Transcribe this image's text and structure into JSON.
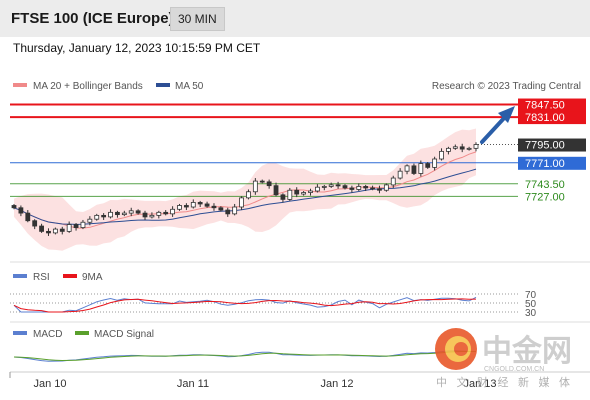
{
  "header": {
    "title": "FTSE 100 (ICE Europe)",
    "interval": "30 MIN"
  },
  "datetime": "Thursday, January 12, 2023 10:15:59 PM CET",
  "legend": {
    "ma_bb": "MA 20 + Bollinger Bands",
    "ma50": "MA 50",
    "credit": "Research © 2023 Trading Central"
  },
  "colors": {
    "resistance": "#e8141b",
    "current": "#333333",
    "pivot": "#2f6bd6",
    "support": "#2e8b1e",
    "arrow": "#2a5ea8",
    "ma20": "#f08a8a",
    "ma50": "#2d4e94",
    "bands": "#fbdcdc"
  },
  "levels": [
    {
      "label": "7847.50",
      "kind": "resistance"
    },
    {
      "label": "7831.00",
      "kind": "resistance"
    },
    {
      "label": "7795.00",
      "kind": "current"
    },
    {
      "label": "7771.00",
      "kind": "pivot"
    },
    {
      "label": "7743.50",
      "kind": "support"
    },
    {
      "label": "7727.00",
      "kind": "support"
    }
  ],
  "rsi": {
    "label": "RSI",
    "ma_label": "9MA",
    "ticks": [
      "70",
      "50",
      "30"
    ]
  },
  "macd": {
    "label": "MACD",
    "signal_label": "MACD Signal"
  },
  "x_axis": {
    "labels": [
      "Jan 10",
      "Jan 11",
      "Jan 12",
      "Jan 13"
    ]
  },
  "watermark": {
    "brand": "中金网",
    "site": "CNGOLD.COM.CN",
    "tagline": "中 文 财 经 新 媒 体"
  },
  "chart_data": {
    "type": "candlestick",
    "y_range": [
      7650,
      7860
    ],
    "levels": [
      7847.5,
      7831.0,
      7795.0,
      7771.0,
      7743.5,
      7727.0
    ],
    "close_series": [
      7712,
      7705,
      7695,
      7688,
      7681,
      7679,
      7684,
      7681,
      7690,
      7686,
      7693,
      7697,
      7702,
      7700,
      7706,
      7703,
      7705,
      7708,
      7705,
      7700,
      7702,
      7706,
      7704,
      7710,
      7715,
      7713,
      7719,
      7717,
      7714,
      7712,
      7709,
      7704,
      7713,
      7725,
      7733,
      7747,
      7746,
      7741,
      7729,
      7723,
      7735,
      7730,
      7732,
      7734,
      7739,
      7740,
      7742,
      7741,
      7738,
      7736,
      7740,
      7738,
      7737,
      7735,
      7742,
      7751,
      7760,
      7767,
      7757,
      7770,
      7765,
      7776,
      7786,
      7790,
      7792,
      7789,
      7790,
      7795
    ]
  }
}
